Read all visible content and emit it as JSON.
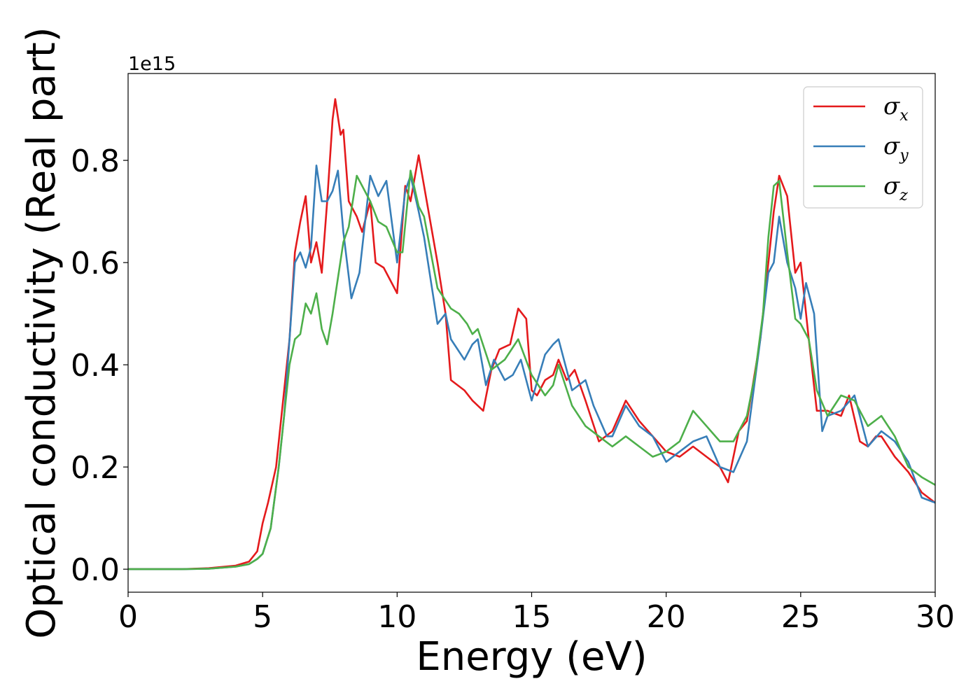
{
  "chart_data": {
    "type": "line",
    "xlabel": "Energy (eV)",
    "ylabel": "Optical conductivity (Real part)",
    "y_offset_label": "1e15",
    "xlim": [
      0,
      30
    ],
    "ylim": [
      -0.045,
      0.97
    ],
    "x_ticks": [
      0,
      5,
      10,
      15,
      20,
      25,
      30
    ],
    "x_tick_labels": [
      "0",
      "5",
      "10",
      "15",
      "20",
      "25",
      "30"
    ],
    "y_ticks": [
      0.0,
      0.2,
      0.4,
      0.6,
      0.8
    ],
    "y_tick_labels": [
      "0.0",
      "0.2",
      "0.4",
      "0.6",
      "0.8"
    ],
    "grid": false,
    "legend_position": "top-right",
    "series": [
      {
        "name": "σx",
        "symbol": "σ",
        "subscript": "x",
        "color": "#e41a1c",
        "x": [
          0,
          2,
          3,
          4,
          4.5,
          4.8,
          5.0,
          5.2,
          5.5,
          5.7,
          6.0,
          6.2,
          6.4,
          6.6,
          6.8,
          7.0,
          7.2,
          7.4,
          7.6,
          7.7,
          7.9,
          8.0,
          8.2,
          8.5,
          8.7,
          9.0,
          9.2,
          9.5,
          10.0,
          10.3,
          10.5,
          10.8,
          11.0,
          11.5,
          11.8,
          12.0,
          12.5,
          12.8,
          13.2,
          13.5,
          13.8,
          14.2,
          14.5,
          14.8,
          15.0,
          15.2,
          15.5,
          15.8,
          16.0,
          16.3,
          16.6,
          17.0,
          17.5,
          18.0,
          18.5,
          19.0,
          19.5,
          20.0,
          20.5,
          21.0,
          21.5,
          22.0,
          22.3,
          22.7,
          23.0,
          23.5,
          23.8,
          24.0,
          24.2,
          24.5,
          24.8,
          25.0,
          25.3,
          25.6,
          26.0,
          26.5,
          26.8,
          27.2,
          27.5,
          27.8,
          28.0,
          28.5,
          29.0,
          29.5,
          30.0
        ],
        "y": [
          0.0,
          0.0,
          0.002,
          0.007,
          0.015,
          0.035,
          0.09,
          0.13,
          0.2,
          0.3,
          0.45,
          0.62,
          0.68,
          0.73,
          0.6,
          0.64,
          0.58,
          0.72,
          0.88,
          0.92,
          0.85,
          0.86,
          0.72,
          0.69,
          0.66,
          0.72,
          0.6,
          0.59,
          0.54,
          0.75,
          0.72,
          0.81,
          0.75,
          0.6,
          0.5,
          0.37,
          0.35,
          0.33,
          0.31,
          0.39,
          0.43,
          0.44,
          0.51,
          0.49,
          0.35,
          0.34,
          0.37,
          0.38,
          0.41,
          0.37,
          0.39,
          0.33,
          0.25,
          0.27,
          0.33,
          0.29,
          0.26,
          0.23,
          0.22,
          0.24,
          0.22,
          0.2,
          0.17,
          0.27,
          0.29,
          0.45,
          0.6,
          0.7,
          0.77,
          0.73,
          0.58,
          0.6,
          0.45,
          0.31,
          0.31,
          0.3,
          0.34,
          0.25,
          0.24,
          0.26,
          0.26,
          0.22,
          0.19,
          0.15,
          0.13
        ]
      },
      {
        "name": "σy",
        "symbol": "σ",
        "subscript": "y",
        "color": "#377eb8",
        "x": [
          0,
          2,
          3,
          4,
          4.5,
          4.8,
          5.0,
          5.3,
          5.6,
          5.8,
          6.0,
          6.2,
          6.4,
          6.6,
          6.8,
          7.0,
          7.2,
          7.4,
          7.6,
          7.8,
          8.0,
          8.3,
          8.6,
          9.0,
          9.3,
          9.6,
          10.0,
          10.3,
          10.5,
          10.8,
          11.0,
          11.5,
          11.8,
          12.0,
          12.5,
          12.8,
          13.0,
          13.3,
          13.6,
          14.0,
          14.3,
          14.6,
          15.0,
          15.5,
          15.8,
          16.0,
          16.5,
          17.0,
          17.3,
          17.8,
          18.0,
          18.5,
          19.0,
          19.5,
          20.0,
          20.5,
          21.0,
          21.5,
          22.0,
          22.5,
          23.0,
          23.5,
          23.8,
          24.0,
          24.2,
          24.5,
          24.8,
          25.0,
          25.2,
          25.5,
          25.8,
          26.0,
          26.5,
          27.0,
          27.5,
          28.0,
          28.5,
          29.0,
          29.5,
          30.0
        ],
        "y": [
          0.0,
          0.0,
          0.001,
          0.005,
          0.01,
          0.02,
          0.03,
          0.08,
          0.2,
          0.3,
          0.45,
          0.6,
          0.62,
          0.59,
          0.63,
          0.79,
          0.72,
          0.72,
          0.74,
          0.78,
          0.66,
          0.53,
          0.58,
          0.77,
          0.73,
          0.76,
          0.6,
          0.74,
          0.77,
          0.7,
          0.65,
          0.48,
          0.5,
          0.45,
          0.41,
          0.44,
          0.45,
          0.36,
          0.41,
          0.37,
          0.38,
          0.41,
          0.33,
          0.42,
          0.44,
          0.45,
          0.35,
          0.37,
          0.32,
          0.26,
          0.26,
          0.32,
          0.28,
          0.26,
          0.21,
          0.23,
          0.25,
          0.26,
          0.2,
          0.19,
          0.25,
          0.45,
          0.58,
          0.6,
          0.69,
          0.6,
          0.55,
          0.49,
          0.56,
          0.5,
          0.27,
          0.3,
          0.31,
          0.34,
          0.24,
          0.27,
          0.25,
          0.21,
          0.14,
          0.13
        ]
      },
      {
        "name": "σz",
        "symbol": "σ",
        "subscript": "z",
        "color": "#4daf4a",
        "x": [
          0,
          2,
          3,
          4,
          4.5,
          4.8,
          5.0,
          5.3,
          5.6,
          5.8,
          6.0,
          6.2,
          6.4,
          6.6,
          6.8,
          7.0,
          7.2,
          7.4,
          7.6,
          7.8,
          8.0,
          8.2,
          8.5,
          8.8,
          9.0,
          9.3,
          9.6,
          10.0,
          10.2,
          10.5,
          10.8,
          11.0,
          11.5,
          12.0,
          12.3,
          12.6,
          12.8,
          13.0,
          13.5,
          14.0,
          14.5,
          15.0,
          15.5,
          15.8,
          16.0,
          16.5,
          17.0,
          17.5,
          18.0,
          18.5,
          19.0,
          19.5,
          20.0,
          20.5,
          21.0,
          21.5,
          22.0,
          22.5,
          23.0,
          23.3,
          23.6,
          23.8,
          24.0,
          24.2,
          24.5,
          24.8,
          25.0,
          25.3,
          25.6,
          26.0,
          26.5,
          27.0,
          27.5,
          28.0,
          28.5,
          29.0,
          29.5,
          30.0
        ],
        "y": [
          0.0,
          0.0,
          0.001,
          0.005,
          0.01,
          0.02,
          0.03,
          0.08,
          0.2,
          0.3,
          0.4,
          0.45,
          0.46,
          0.52,
          0.5,
          0.54,
          0.47,
          0.44,
          0.5,
          0.57,
          0.64,
          0.67,
          0.77,
          0.74,
          0.72,
          0.68,
          0.67,
          0.62,
          0.62,
          0.78,
          0.71,
          0.69,
          0.55,
          0.51,
          0.5,
          0.48,
          0.46,
          0.47,
          0.39,
          0.41,
          0.45,
          0.38,
          0.34,
          0.36,
          0.4,
          0.32,
          0.28,
          0.26,
          0.24,
          0.26,
          0.24,
          0.22,
          0.23,
          0.25,
          0.31,
          0.28,
          0.25,
          0.25,
          0.3,
          0.38,
          0.5,
          0.65,
          0.75,
          0.76,
          0.62,
          0.49,
          0.48,
          0.45,
          0.35,
          0.3,
          0.34,
          0.33,
          0.28,
          0.3,
          0.26,
          0.2,
          0.18,
          0.165
        ]
      }
    ]
  }
}
